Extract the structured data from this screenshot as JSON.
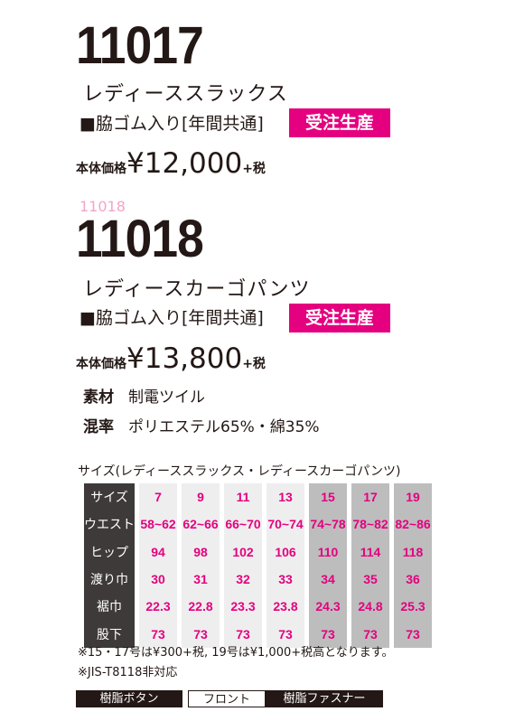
{
  "product1": {
    "model": "11017",
    "name": "レディーススラックス",
    "spec": "■脇ゴム入り[年間共通]",
    "badge": "受注生産",
    "price_label": "本体価格",
    "price": "¥12,000",
    "tax": "+税"
  },
  "product2": {
    "sub_no": "11018",
    "model": "11018",
    "name": "レディースカーゴパンツ",
    "spec": "■脇ゴム入り[年間共通]",
    "badge": "受注生産",
    "price_label": "本体価格",
    "price": "¥13,800",
    "tax": "+税"
  },
  "materials": [
    {
      "key": "素材",
      "value": "制電ツイル"
    },
    {
      "key": "混率",
      "value": "ポリエステル65%・綿35%"
    }
  ],
  "size_table": {
    "title": "サイズ(レディーススラックス・レディースカーゴパンツ)",
    "rows": [
      {
        "label": "サイズ",
        "values": [
          "7",
          "9",
          "11",
          "13",
          "15",
          "17",
          "19"
        ]
      },
      {
        "label": "ウエスト",
        "values": [
          "58~62",
          "62~66",
          "66~70",
          "70~74",
          "74~78",
          "78~82",
          "82~86"
        ]
      },
      {
        "label": "ヒップ",
        "values": [
          "94",
          "98",
          "102",
          "106",
          "110",
          "114",
          "118"
        ]
      },
      {
        "label": "渡り巾",
        "values": [
          "30",
          "31",
          "32",
          "33",
          "34",
          "35",
          "36"
        ]
      },
      {
        "label": "裾巾",
        "values": [
          "22.3",
          "22.8",
          "23.3",
          "23.8",
          "24.3",
          "24.8",
          "25.3"
        ]
      },
      {
        "label": "股下",
        "values": [
          "73",
          "73",
          "73",
          "73",
          "73",
          "73",
          "73"
        ]
      }
    ]
  },
  "notes": [
    "※15・17号は¥300+税, 19号は¥1,000+税高となります。",
    "※JIS-T8118非対応"
  ],
  "bottom": {
    "button": "樹脂ボタン",
    "front": "フロント",
    "fastener": "樹脂ファスナー"
  },
  "colors": {
    "accent": "#e4007f",
    "dark": "#231815",
    "header_bg": "#3e3a39"
  }
}
